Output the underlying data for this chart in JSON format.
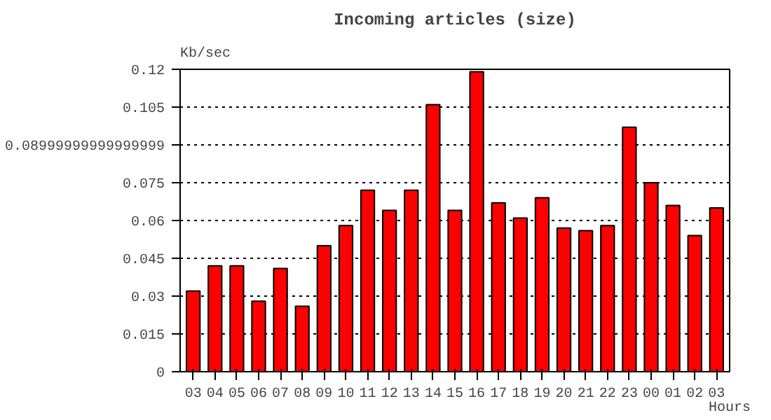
{
  "chart_data": {
    "type": "bar",
    "title": "Incoming articles (size)",
    "ylabel": "Kb/sec",
    "xlabel": "Hours",
    "categories": [
      "03",
      "04",
      "05",
      "06",
      "07",
      "08",
      "09",
      "10",
      "11",
      "12",
      "13",
      "14",
      "15",
      "16",
      "17",
      "18",
      "19",
      "20",
      "21",
      "22",
      "23",
      "00",
      "01",
      "02",
      "03"
    ],
    "values": [
      0.032,
      0.042,
      0.042,
      0.028,
      0.041,
      0.026,
      0.05,
      0.058,
      0.072,
      0.064,
      0.072,
      0.106,
      0.064,
      0.119,
      0.067,
      0.061,
      0.069,
      0.057,
      0.056,
      0.058,
      0.097,
      0.075,
      0.066,
      0.054,
      0.065
    ],
    "color": "#ff0000",
    "ylim": [
      0,
      0.12
    ],
    "yticks": [
      0,
      0.015,
      0.03,
      0.045,
      0.06,
      0.075,
      {
        "value": 0.09,
        "label": "0.08999999999999999"
      },
      0.105,
      0.12
    ],
    "grid": "y"
  }
}
